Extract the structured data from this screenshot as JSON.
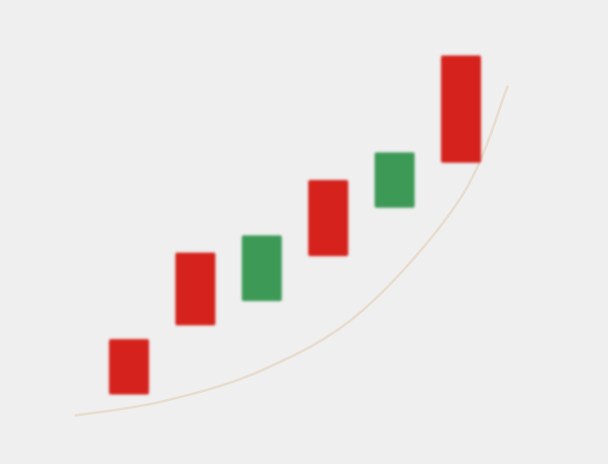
{
  "chart_data": {
    "type": "candlestick",
    "title": "",
    "xlabel": "",
    "ylabel": "",
    "grid": false,
    "legend": "none",
    "ylim": [
      0,
      100
    ],
    "candles": [
      {
        "index": 1,
        "open": 17,
        "close": 1,
        "direction": "down",
        "color": "#d6231e"
      },
      {
        "index": 2,
        "open": 42,
        "close": 21,
        "direction": "down",
        "color": "#d6231e"
      },
      {
        "index": 3,
        "open": 28,
        "close": 47,
        "direction": "up",
        "color": "#3d9a57"
      },
      {
        "index": 4,
        "open": 63,
        "close": 41,
        "direction": "down",
        "color": "#d6231e"
      },
      {
        "index": 5,
        "open": 55,
        "close": 71,
        "direction": "up",
        "color": "#3d9a57"
      },
      {
        "index": 6,
        "open": 99,
        "close": 68,
        "direction": "down",
        "color": "#d6231e"
      }
    ],
    "trendline": {
      "points": [
        {
          "x": 0.2,
          "y": -5
        },
        {
          "x": 1.5,
          "y": -1
        },
        {
          "x": 3.0,
          "y": 8
        },
        {
          "x": 4.5,
          "y": 25
        },
        {
          "x": 6.0,
          "y": 58
        },
        {
          "x": 6.7,
          "y": 90
        }
      ],
      "color": "#e8dccf"
    },
    "colors": {
      "background": "#efefef",
      "down": "#d6231e",
      "up": "#3d9a57"
    }
  }
}
